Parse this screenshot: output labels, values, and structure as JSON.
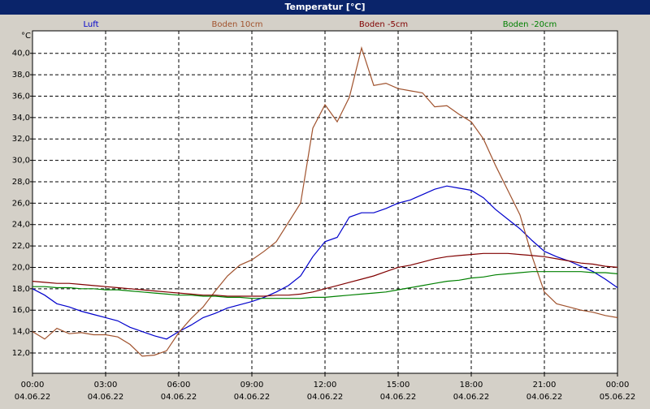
{
  "chart_data": {
    "type": "line",
    "title": "Temperatur [°C]",
    "y_label": "°C",
    "x": [
      0,
      0.5,
      1,
      1.5,
      2,
      2.5,
      3,
      3.5,
      4,
      4.5,
      5,
      5.5,
      6,
      6.5,
      7,
      7.5,
      8,
      8.5,
      9,
      9.5,
      10,
      10.5,
      11,
      11.5,
      12,
      12.5,
      13,
      13.5,
      14,
      14.5,
      15,
      15.5,
      16,
      16.5,
      17,
      17.5,
      18,
      18.5,
      19,
      19.5,
      20,
      20.5,
      21,
      21.5,
      22,
      22.5,
      23,
      23.5,
      24
    ],
    "series": [
      {
        "name": "Luft",
        "color": "#0000cc",
        "values": [
          18.0,
          17.4,
          16.6,
          16.3,
          15.9,
          15.6,
          15.3,
          15.0,
          14.4,
          14.0,
          13.6,
          13.3,
          14.0,
          14.6,
          15.3,
          15.7,
          16.2,
          16.5,
          16.8,
          17.2,
          17.7,
          18.3,
          19.2,
          21.0,
          22.4,
          22.8,
          24.7,
          25.1,
          25.1,
          25.5,
          26.0,
          26.3,
          26.8,
          27.3,
          27.6,
          27.4,
          27.2,
          26.5,
          25.4,
          24.5,
          23.6,
          22.5,
          21.5,
          21.0,
          20.6,
          20.1,
          19.6,
          18.9,
          18.1
        ]
      },
      {
        "name": "Boden 10cm",
        "color": "#a0522d",
        "values": [
          14.0,
          13.3,
          14.3,
          13.8,
          13.9,
          13.7,
          13.7,
          13.5,
          12.8,
          11.7,
          11.8,
          12.2,
          13.9,
          15.2,
          16.3,
          17.8,
          19.2,
          20.2,
          20.7,
          21.5,
          22.4,
          24.2,
          26.0,
          33.0,
          35.2,
          33.6,
          35.9,
          40.5,
          37.0,
          37.2,
          36.7,
          36.5,
          36.3,
          35.0,
          35.1,
          34.3,
          33.6,
          32.0,
          29.5,
          27.2,
          24.9,
          21.0,
          17.7,
          16.6,
          16.3,
          16.0,
          15.8,
          15.5,
          15.3
        ]
      },
      {
        "name": "Boden -5cm",
        "color": "#800000",
        "values": [
          18.7,
          18.6,
          18.5,
          18.5,
          18.4,
          18.3,
          18.2,
          18.1,
          18.0,
          17.9,
          17.8,
          17.7,
          17.6,
          17.5,
          17.4,
          17.4,
          17.3,
          17.3,
          17.3,
          17.3,
          17.4,
          17.4,
          17.5,
          17.7,
          18.0,
          18.3,
          18.6,
          18.9,
          19.2,
          19.6,
          20.0,
          20.2,
          20.5,
          20.8,
          21.0,
          21.1,
          21.2,
          21.3,
          21.3,
          21.3,
          21.2,
          21.1,
          21.0,
          20.8,
          20.6,
          20.4,
          20.3,
          20.1,
          20.0
        ]
      },
      {
        "name": "Boden -20cm",
        "color": "#008000",
        "values": [
          18.2,
          18.2,
          18.1,
          18.1,
          18.0,
          18.0,
          17.9,
          17.9,
          17.8,
          17.7,
          17.6,
          17.5,
          17.4,
          17.4,
          17.3,
          17.3,
          17.2,
          17.2,
          17.1,
          17.1,
          17.1,
          17.1,
          17.1,
          17.2,
          17.2,
          17.3,
          17.4,
          17.5,
          17.6,
          17.7,
          17.9,
          18.1,
          18.3,
          18.5,
          18.7,
          18.8,
          19.0,
          19.1,
          19.3,
          19.4,
          19.5,
          19.6,
          19.6,
          19.6,
          19.6,
          19.6,
          19.5,
          19.5,
          19.4
        ]
      }
    ],
    "xlim": [
      0,
      24
    ],
    "xticks": [
      {
        "value": 0,
        "label": "00:00",
        "date": "04.06.22"
      },
      {
        "value": 3,
        "label": "03:00",
        "date": "04.06.22"
      },
      {
        "value": 6,
        "label": "06:00",
        "date": "04.06.22"
      },
      {
        "value": 9,
        "label": "09:00",
        "date": "04.06.22"
      },
      {
        "value": 12,
        "label": "12:00",
        "date": "04.06.22"
      },
      {
        "value": 15,
        "label": "15:00",
        "date": "04.06.22"
      },
      {
        "value": 18,
        "label": "18:00",
        "date": "04.06.22"
      },
      {
        "value": 21,
        "label": "21:00",
        "date": "04.06.22"
      },
      {
        "value": 24,
        "label": "00:00",
        "date": "05.06.22"
      }
    ],
    "ylim": [
      10.1,
      42.1
    ],
    "yticks": [
      {
        "value": 12,
        "label": "12,0"
      },
      {
        "value": 14,
        "label": "14,0"
      },
      {
        "value": 16,
        "label": "16,0"
      },
      {
        "value": 18,
        "label": "18,0"
      },
      {
        "value": 20,
        "label": "20,0"
      },
      {
        "value": 22,
        "label": "22,0"
      },
      {
        "value": 24,
        "label": "24,0"
      },
      {
        "value": 26,
        "label": "26,0"
      },
      {
        "value": 28,
        "label": "28,0"
      },
      {
        "value": 30,
        "label": "30,0"
      },
      {
        "value": 32,
        "label": "32,0"
      },
      {
        "value": 34,
        "label": "34,0"
      },
      {
        "value": 36,
        "label": "36,0"
      },
      {
        "value": 38,
        "label": "38,0"
      },
      {
        "value": 40,
        "label": "40,0"
      }
    ],
    "grid": true
  }
}
